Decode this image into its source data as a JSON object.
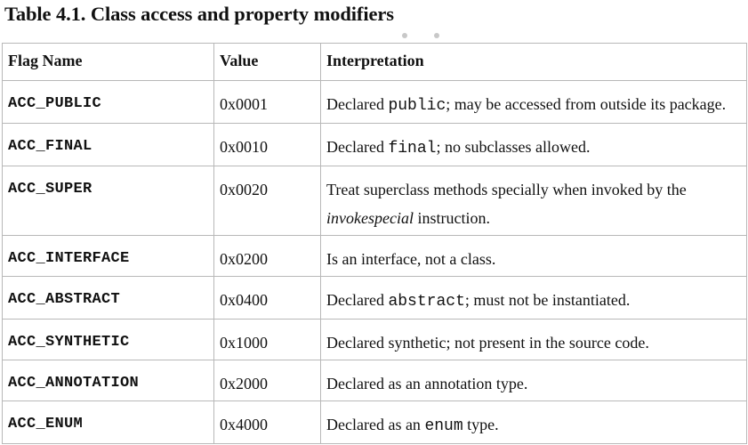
{
  "caption": "Table 4.1. Class access and property modifiers",
  "table": {
    "headers": {
      "flag": "Flag Name",
      "value": "Value",
      "interpretation": "Interpretation"
    },
    "rows": [
      {
        "flag": "ACC_PUBLIC",
        "value": "0x0001",
        "interp": {
          "pre": "Declared ",
          "code": "public",
          "post": "; may be accessed from outside its package."
        }
      },
      {
        "flag": "ACC_FINAL",
        "value": "0x0010",
        "interp": {
          "pre": "Declared ",
          "code": "final",
          "post": "; no subclasses allowed."
        }
      },
      {
        "flag": "ACC_SUPER",
        "value": "0x0020",
        "interp": {
          "pre": "Treat superclass methods specially when invoked by the ",
          "italic": "invokespecial",
          "post": " instruction."
        }
      },
      {
        "flag": "ACC_INTERFACE",
        "value": "0x0200",
        "interp": {
          "pre": "Is an interface, not a class."
        }
      },
      {
        "flag": "ACC_ABSTRACT",
        "value": "0x0400",
        "interp": {
          "pre": "Declared ",
          "code": "abstract",
          "post": "; must not be instantiated."
        }
      },
      {
        "flag": "ACC_SYNTHETIC",
        "value": "0x1000",
        "interp": {
          "pre": "Declared synthetic; not present in the source code."
        }
      },
      {
        "flag": "ACC_ANNOTATION",
        "value": "0x2000",
        "interp": {
          "pre": "Declared as an annotation type."
        }
      },
      {
        "flag": "ACC_ENUM",
        "value": "0x4000",
        "interp": {
          "pre": "Declared as an ",
          "code": "enum",
          "post": " type."
        }
      }
    ]
  }
}
